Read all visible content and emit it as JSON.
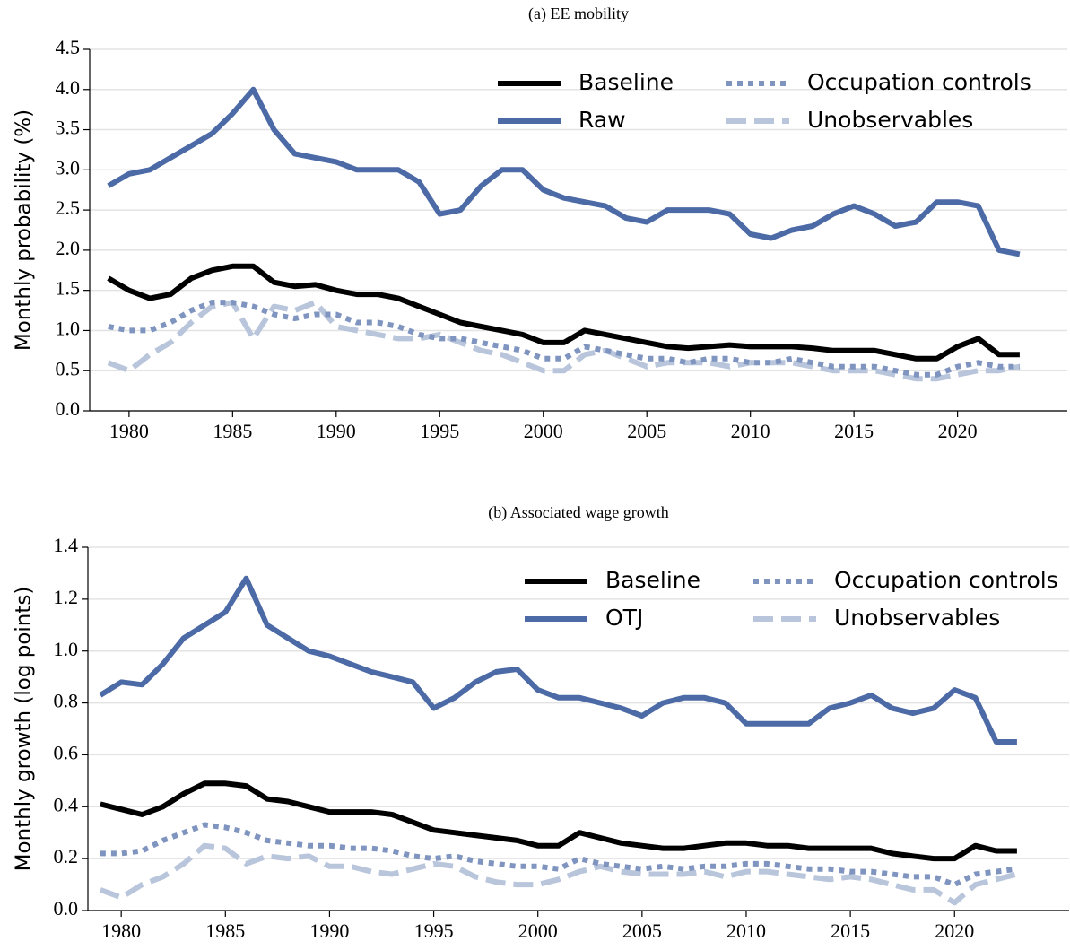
{
  "chart_data": [
    {
      "type": "line",
      "title": "(a) EE mobility",
      "ylabel": "Monthly probability (%)",
      "x": [
        1979,
        1980,
        1981,
        1982,
        1983,
        1984,
        1985,
        1986,
        1987,
        1988,
        1989,
        1990,
        1991,
        1992,
        1993,
        1994,
        1995,
        1996,
        1997,
        1998,
        1999,
        2000,
        2001,
        2002,
        2003,
        2004,
        2005,
        2006,
        2007,
        2008,
        2009,
        2010,
        2011,
        2012,
        2013,
        2014,
        2015,
        2016,
        2017,
        2018,
        2019,
        2020,
        2021,
        2022,
        2023
      ],
      "series": [
        {
          "name": "Baseline",
          "color": "#000000",
          "dash": "solid",
          "values": [
            1.65,
            1.5,
            1.4,
            1.45,
            1.65,
            1.75,
            1.8,
            1.8,
            1.6,
            1.55,
            1.57,
            1.5,
            1.45,
            1.45,
            1.4,
            1.3,
            1.2,
            1.1,
            1.05,
            1.0,
            0.95,
            0.85,
            0.85,
            1.0,
            0.95,
            0.9,
            0.85,
            0.8,
            0.78,
            0.8,
            0.82,
            0.8,
            0.8,
            0.8,
            0.78,
            0.75,
            0.75,
            0.75,
            0.7,
            0.65,
            0.65,
            0.8,
            0.9,
            0.7,
            0.7
          ]
        },
        {
          "name": "Raw",
          "color": "#4c6aa6",
          "dash": "solid",
          "values": [
            2.8,
            2.95,
            3.0,
            3.15,
            3.3,
            3.45,
            3.7,
            4.0,
            3.5,
            3.2,
            3.15,
            3.1,
            3.0,
            3.0,
            3.0,
            2.85,
            2.45,
            2.5,
            2.8,
            3.0,
            3.0,
            2.75,
            2.65,
            2.6,
            2.55,
            2.4,
            2.35,
            2.5,
            2.5,
            2.5,
            2.45,
            2.2,
            2.15,
            2.25,
            2.3,
            2.45,
            2.55,
            2.45,
            2.3,
            2.35,
            2.6,
            2.6,
            2.55,
            2.0,
            1.95
          ]
        },
        {
          "name": "Occupation controls",
          "color": "#7f95c0",
          "dash": "dotted",
          "values": [
            1.05,
            1.0,
            1.0,
            1.1,
            1.25,
            1.35,
            1.35,
            1.3,
            1.2,
            1.15,
            1.2,
            1.2,
            1.1,
            1.1,
            1.05,
            0.95,
            0.9,
            0.9,
            0.85,
            0.8,
            0.75,
            0.65,
            0.65,
            0.8,
            0.75,
            0.7,
            0.65,
            0.65,
            0.6,
            0.65,
            0.65,
            0.6,
            0.6,
            0.65,
            0.6,
            0.55,
            0.55,
            0.55,
            0.5,
            0.45,
            0.45,
            0.55,
            0.6,
            0.55,
            0.55
          ]
        },
        {
          "name": "Unobservables",
          "color": "#b8c5db",
          "dash": "dashed",
          "values": [
            0.6,
            0.5,
            0.7,
            0.85,
            1.1,
            1.3,
            1.35,
            0.9,
            1.3,
            1.25,
            1.35,
            1.05,
            1.0,
            0.95,
            0.9,
            0.9,
            0.95,
            0.85,
            0.75,
            0.7,
            0.6,
            0.5,
            0.5,
            0.7,
            0.75,
            0.65,
            0.55,
            0.6,
            0.6,
            0.6,
            0.55,
            0.6,
            0.6,
            0.6,
            0.55,
            0.5,
            0.5,
            0.5,
            0.45,
            0.4,
            0.4,
            0.45,
            0.5,
            0.5,
            0.55
          ]
        }
      ],
      "xlim": [
        1978.1,
        2025.3
      ],
      "xticks": [
        1980,
        1985,
        1990,
        1995,
        2000,
        2005,
        2010,
        2015,
        2020
      ],
      "ylim": [
        0,
        4.5
      ],
      "yticks": [
        {
          "value": 0,
          "label": "0.0"
        },
        0.5,
        {
          "value": 1,
          "label": "1.0"
        },
        1.5,
        {
          "value": 2,
          "label": "2.0"
        },
        2.5,
        {
          "value": 3,
          "label": "3.0"
        },
        3.5,
        {
          "value": 4,
          "label": "4.0"
        },
        4.5
      ],
      "grid": true,
      "legend": "upper right"
    },
    {
      "type": "line",
      "title": "(b) Associated wage growth",
      "ylabel": "Monthly growth (log points)",
      "x": [
        1979,
        1980,
        1981,
        1982,
        1983,
        1984,
        1985,
        1986,
        1987,
        1988,
        1989,
        1990,
        1991,
        1992,
        1993,
        1994,
        1995,
        1996,
        1997,
        1998,
        1999,
        2000,
        2001,
        2002,
        2003,
        2004,
        2005,
        2006,
        2007,
        2008,
        2009,
        2010,
        2011,
        2012,
        2013,
        2014,
        2015,
        2016,
        2017,
        2018,
        2019,
        2020,
        2021,
        2022,
        2023
      ],
      "series": [
        {
          "name": "Baseline",
          "color": "#000000",
          "dash": "solid",
          "values": [
            0.41,
            0.39,
            0.37,
            0.4,
            0.45,
            0.49,
            0.49,
            0.48,
            0.43,
            0.42,
            0.4,
            0.38,
            0.38,
            0.38,
            0.37,
            0.34,
            0.31,
            0.3,
            0.29,
            0.28,
            0.27,
            0.25,
            0.25,
            0.3,
            0.28,
            0.26,
            0.25,
            0.24,
            0.24,
            0.25,
            0.26,
            0.26,
            0.25,
            0.25,
            0.24,
            0.24,
            0.24,
            0.24,
            0.22,
            0.21,
            0.2,
            0.2,
            0.25,
            0.23,
            0.23
          ]
        },
        {
          "name": "OTJ",
          "color": "#4c6aa6",
          "dash": "solid",
          "values": [
            0.83,
            0.88,
            0.87,
            0.95,
            1.05,
            1.1,
            1.15,
            1.28,
            1.1,
            1.05,
            1.0,
            0.98,
            0.95,
            0.92,
            0.9,
            0.88,
            0.78,
            0.82,
            0.88,
            0.92,
            0.93,
            0.85,
            0.82,
            0.82,
            0.8,
            0.78,
            0.75,
            0.8,
            0.82,
            0.82,
            0.8,
            0.72,
            0.72,
            0.72,
            0.72,
            0.78,
            0.8,
            0.83,
            0.78,
            0.76,
            0.78,
            0.85,
            0.82,
            0.65,
            0.65
          ]
        },
        {
          "name": "Occupation controls",
          "color": "#7f95c0",
          "dash": "dotted",
          "values": [
            0.22,
            0.22,
            0.23,
            0.27,
            0.3,
            0.33,
            0.32,
            0.3,
            0.27,
            0.26,
            0.25,
            0.25,
            0.24,
            0.24,
            0.23,
            0.21,
            0.2,
            0.21,
            0.19,
            0.18,
            0.17,
            0.17,
            0.16,
            0.2,
            0.18,
            0.17,
            0.16,
            0.17,
            0.16,
            0.17,
            0.17,
            0.18,
            0.18,
            0.17,
            0.16,
            0.16,
            0.15,
            0.15,
            0.14,
            0.13,
            0.13,
            0.1,
            0.14,
            0.15,
            0.16
          ]
        },
        {
          "name": "Unobservables",
          "color": "#b8c5db",
          "dash": "dashed",
          "values": [
            0.08,
            0.05,
            0.1,
            0.13,
            0.18,
            0.25,
            0.24,
            0.18,
            0.21,
            0.2,
            0.21,
            0.17,
            0.17,
            0.15,
            0.14,
            0.16,
            0.18,
            0.17,
            0.13,
            0.11,
            0.1,
            0.1,
            0.12,
            0.15,
            0.17,
            0.15,
            0.14,
            0.14,
            0.14,
            0.15,
            0.13,
            0.15,
            0.15,
            0.14,
            0.13,
            0.12,
            0.13,
            0.12,
            0.1,
            0.08,
            0.08,
            0.03,
            0.1,
            0.12,
            0.14
          ]
        }
      ],
      "xlim": [
        1978.4,
        2025.5
      ],
      "xticks": [
        1980,
        1985,
        1990,
        1995,
        2000,
        2005,
        2010,
        2015,
        2020
      ],
      "ylim": [
        0,
        1.4
      ],
      "yticks": [
        {
          "value": 0,
          "label": "0.0"
        },
        0.2,
        0.4,
        0.6,
        0.8,
        {
          "value": 1,
          "label": "1.0"
        },
        1.2,
        1.4
      ],
      "grid": true,
      "legend": "upper right"
    }
  ]
}
